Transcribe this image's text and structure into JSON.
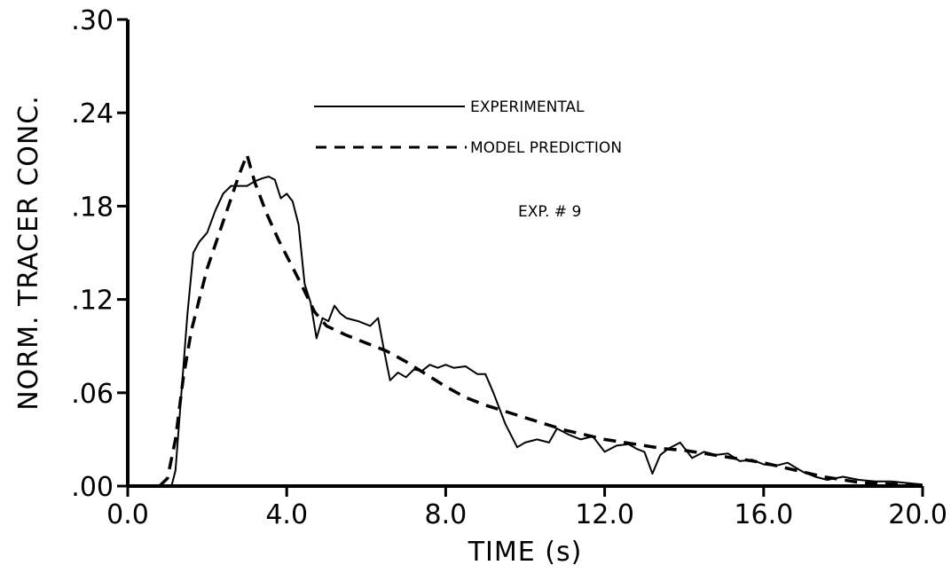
{
  "chart_data": {
    "type": "line",
    "title": "",
    "xlabel": "TIME  (s)",
    "ylabel": "NORM. TRACER CONC.",
    "xlim": [
      0,
      20
    ],
    "ylim": [
      0,
      0.3
    ],
    "x_tick_values": [
      0,
      4,
      8,
      12,
      16,
      20
    ],
    "x_tick_labels": [
      "0.0",
      "4.0",
      "8.0",
      "12.0",
      "16.0",
      "20.0"
    ],
    "y_tick_values": [
      0,
      0.06,
      0.12,
      0.18,
      0.24,
      0.3
    ],
    "y_tick_labels": [
      ".00",
      ".06",
      ".12",
      ".18",
      ".24",
      ".30"
    ],
    "grid": false,
    "legend_position": "top-center",
    "annotation": "EXP. # 9",
    "series": [
      {
        "name": "EXPERIMENTAL",
        "style": "solid",
        "points": [
          [
            1.1,
            0.0
          ],
          [
            1.2,
            0.01
          ],
          [
            1.35,
            0.06
          ],
          [
            1.5,
            0.11
          ],
          [
            1.65,
            0.15
          ],
          [
            1.8,
            0.157
          ],
          [
            2.0,
            0.163
          ],
          [
            2.2,
            0.177
          ],
          [
            2.4,
            0.188
          ],
          [
            2.6,
            0.193
          ],
          [
            2.8,
            0.193
          ],
          [
            3.0,
            0.193
          ],
          [
            3.2,
            0.196
          ],
          [
            3.4,
            0.198
          ],
          [
            3.55,
            0.199
          ],
          [
            3.7,
            0.197
          ],
          [
            3.85,
            0.185
          ],
          [
            4.0,
            0.188
          ],
          [
            4.15,
            0.183
          ],
          [
            4.3,
            0.168
          ],
          [
            4.45,
            0.13
          ],
          [
            4.6,
            0.118
          ],
          [
            4.75,
            0.095
          ],
          [
            4.9,
            0.108
          ],
          [
            5.05,
            0.106
          ],
          [
            5.2,
            0.116
          ],
          [
            5.35,
            0.111
          ],
          [
            5.5,
            0.108
          ],
          [
            5.8,
            0.106
          ],
          [
            6.1,
            0.103
          ],
          [
            6.3,
            0.108
          ],
          [
            6.45,
            0.087
          ],
          [
            6.6,
            0.068
          ],
          [
            6.8,
            0.073
          ],
          [
            7.0,
            0.07
          ],
          [
            7.2,
            0.075
          ],
          [
            7.4,
            0.074
          ],
          [
            7.6,
            0.078
          ],
          [
            7.8,
            0.076
          ],
          [
            8.0,
            0.078
          ],
          [
            8.2,
            0.076
          ],
          [
            8.5,
            0.077
          ],
          [
            8.8,
            0.072
          ],
          [
            9.0,
            0.072
          ],
          [
            9.2,
            0.06
          ],
          [
            9.5,
            0.04
          ],
          [
            9.8,
            0.025
          ],
          [
            10.0,
            0.028
          ],
          [
            10.3,
            0.03
          ],
          [
            10.6,
            0.028
          ],
          [
            10.8,
            0.037
          ],
          [
            11.1,
            0.033
          ],
          [
            11.4,
            0.03
          ],
          [
            11.7,
            0.032
          ],
          [
            12.0,
            0.022
          ],
          [
            12.3,
            0.026
          ],
          [
            12.6,
            0.027
          ],
          [
            12.8,
            0.024
          ],
          [
            13.0,
            0.022
          ],
          [
            13.2,
            0.008
          ],
          [
            13.4,
            0.02
          ],
          [
            13.6,
            0.024
          ],
          [
            13.9,
            0.028
          ],
          [
            14.2,
            0.018
          ],
          [
            14.5,
            0.022
          ],
          [
            14.8,
            0.02
          ],
          [
            15.1,
            0.021
          ],
          [
            15.4,
            0.016
          ],
          [
            15.7,
            0.017
          ],
          [
            16.0,
            0.014
          ],
          [
            16.3,
            0.013
          ],
          [
            16.6,
            0.015
          ],
          [
            16.8,
            0.012
          ],
          [
            17.0,
            0.009
          ],
          [
            17.3,
            0.006
          ],
          [
            17.6,
            0.004
          ],
          [
            18.0,
            0.006
          ],
          [
            18.4,
            0.004
          ],
          [
            18.8,
            0.003
          ],
          [
            19.2,
            0.003
          ],
          [
            19.6,
            0.002
          ],
          [
            20.0,
            0.001
          ]
        ]
      },
      {
        "name": "MODEL PREDICTION",
        "style": "dashed",
        "points": [
          [
            0.8,
            0.0
          ],
          [
            1.0,
            0.005
          ],
          [
            1.2,
            0.03
          ],
          [
            1.4,
            0.07
          ],
          [
            1.6,
            0.1
          ],
          [
            1.8,
            0.12
          ],
          [
            2.0,
            0.14
          ],
          [
            2.2,
            0.155
          ],
          [
            2.4,
            0.17
          ],
          [
            2.6,
            0.185
          ],
          [
            2.8,
            0.2
          ],
          [
            3.0,
            0.213
          ],
          [
            3.2,
            0.195
          ],
          [
            3.5,
            0.175
          ],
          [
            3.8,
            0.158
          ],
          [
            4.1,
            0.143
          ],
          [
            4.4,
            0.128
          ],
          [
            4.7,
            0.112
          ],
          [
            5.0,
            0.103
          ],
          [
            5.5,
            0.097
          ],
          [
            6.0,
            0.092
          ],
          [
            6.5,
            0.087
          ],
          [
            7.0,
            0.08
          ],
          [
            7.5,
            0.072
          ],
          [
            8.0,
            0.064
          ],
          [
            8.5,
            0.057
          ],
          [
            9.0,
            0.052
          ],
          [
            9.5,
            0.048
          ],
          [
            10.0,
            0.044
          ],
          [
            10.5,
            0.04
          ],
          [
            11.0,
            0.036
          ],
          [
            11.5,
            0.033
          ],
          [
            12.0,
            0.03
          ],
          [
            12.5,
            0.028
          ],
          [
            13.0,
            0.026
          ],
          [
            13.5,
            0.024
          ],
          [
            14.0,
            0.023
          ],
          [
            14.5,
            0.021
          ],
          [
            15.0,
            0.019
          ],
          [
            15.5,
            0.017
          ],
          [
            16.0,
            0.015
          ],
          [
            16.5,
            0.012
          ],
          [
            17.0,
            0.009
          ],
          [
            17.5,
            0.006
          ],
          [
            18.0,
            0.004
          ],
          [
            18.5,
            0.002
          ],
          [
            19.0,
            0.0015
          ],
          [
            19.5,
            0.001
          ],
          [
            20.0,
            0.0
          ]
        ]
      }
    ]
  }
}
